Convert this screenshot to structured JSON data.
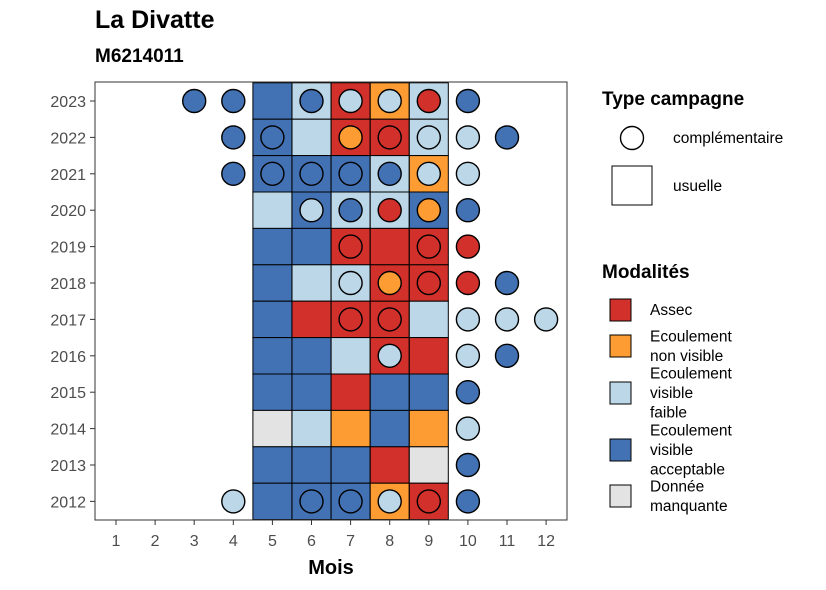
{
  "chart_data": {
    "type": "heatmap",
    "title": "La Divatte",
    "subtitle": "M6214011",
    "xlabel": "Mois",
    "ylabel": "",
    "x_categories": [
      "1",
      "2",
      "3",
      "4",
      "5",
      "6",
      "7",
      "8",
      "9",
      "10",
      "11",
      "12"
    ],
    "y_categories": [
      "2012",
      "2013",
      "2014",
      "2015",
      "2016",
      "2017",
      "2018",
      "2019",
      "2020",
      "2021",
      "2022",
      "2023"
    ],
    "colors": {
      "Assec": "#d2302a",
      "Ecoulement non visible": "#fc9c32",
      "Ecoulement visible faible": "#bcd7e8",
      "Ecoulement visible acceptable": "#4372b4",
      "Donnée manquante": "#e3e3e3"
    },
    "usuelle": [
      {
        "year": "2023",
        "months": [
          "Ecoulement visible acceptable",
          "Ecoulement visible faible",
          "Assec",
          "Ecoulement non visible",
          "Ecoulement visible faible"
        ]
      },
      {
        "year": "2022",
        "months": [
          "Ecoulement visible acceptable",
          "Ecoulement visible faible",
          "Assec",
          "Assec",
          "Ecoulement visible faible"
        ]
      },
      {
        "year": "2021",
        "months": [
          "Ecoulement visible acceptable",
          "Ecoulement visible acceptable",
          "Ecoulement visible acceptable",
          "Ecoulement visible faible",
          "Ecoulement non visible"
        ]
      },
      {
        "year": "2020",
        "months": [
          "Ecoulement visible faible",
          "Ecoulement visible acceptable",
          "Ecoulement visible faible",
          "Ecoulement visible faible",
          "Ecoulement visible acceptable"
        ]
      },
      {
        "year": "2019",
        "months": [
          "Ecoulement visible acceptable",
          "Ecoulement visible acceptable",
          "Assec",
          "Assec",
          "Assec"
        ]
      },
      {
        "year": "2018",
        "months": [
          "Ecoulement visible acceptable",
          "Ecoulement visible faible",
          "Ecoulement visible faible",
          "Assec",
          "Assec"
        ]
      },
      {
        "year": "2017",
        "months": [
          "Ecoulement visible acceptable",
          "Assec",
          "Assec",
          "Assec",
          "Ecoulement visible faible"
        ]
      },
      {
        "year": "2016",
        "months": [
          "Ecoulement visible acceptable",
          "Ecoulement visible acceptable",
          "Ecoulement visible faible",
          "Assec",
          "Assec"
        ]
      },
      {
        "year": "2015",
        "months": [
          "Ecoulement visible acceptable",
          "Ecoulement visible acceptable",
          "Assec",
          "Ecoulement visible acceptable",
          "Ecoulement visible acceptable"
        ]
      },
      {
        "year": "2014",
        "months": [
          "Donnée manquante",
          "Ecoulement visible faible",
          "Ecoulement non visible",
          "Ecoulement visible acceptable",
          "Ecoulement non visible"
        ]
      },
      {
        "year": "2013",
        "months": [
          "Ecoulement visible acceptable",
          "Ecoulement visible acceptable",
          "Ecoulement visible acceptable",
          "Assec",
          "Donnée manquante"
        ]
      },
      {
        "year": "2012",
        "months": [
          "Ecoulement visible acceptable",
          "Ecoulement visible acceptable",
          "Ecoulement visible acceptable",
          "Ecoulement non visible",
          "Assec"
        ]
      }
    ],
    "usuelle_month_range": [
      "5",
      "9"
    ],
    "complementaire": [
      {
        "year": "2023",
        "month": "3",
        "value": "Ecoulement visible acceptable"
      },
      {
        "year": "2023",
        "month": "4",
        "value": "Ecoulement visible acceptable"
      },
      {
        "year": "2023",
        "month": "6",
        "value": "Ecoulement visible acceptable"
      },
      {
        "year": "2023",
        "month": "7",
        "value": "Ecoulement visible faible"
      },
      {
        "year": "2023",
        "month": "8",
        "value": "Ecoulement visible faible"
      },
      {
        "year": "2023",
        "month": "9",
        "value": "Assec"
      },
      {
        "year": "2023",
        "month": "10",
        "value": "Ecoulement visible acceptable"
      },
      {
        "year": "2022",
        "month": "4",
        "value": "Ecoulement visible acceptable"
      },
      {
        "year": "2022",
        "month": "5",
        "value": "Ecoulement visible acceptable"
      },
      {
        "year": "2022",
        "month": "7",
        "value": "Ecoulement non visible"
      },
      {
        "year": "2022",
        "month": "8",
        "value": "Assec"
      },
      {
        "year": "2022",
        "month": "9",
        "value": "Ecoulement visible faible"
      },
      {
        "year": "2022",
        "month": "10",
        "value": "Ecoulement visible faible"
      },
      {
        "year": "2022",
        "month": "11",
        "value": "Ecoulement visible acceptable"
      },
      {
        "year": "2021",
        "month": "4",
        "value": "Ecoulement visible acceptable"
      },
      {
        "year": "2021",
        "month": "5",
        "value": "Ecoulement visible acceptable"
      },
      {
        "year": "2021",
        "month": "6",
        "value": "Ecoulement visible acceptable"
      },
      {
        "year": "2021",
        "month": "7",
        "value": "Ecoulement visible acceptable"
      },
      {
        "year": "2021",
        "month": "8",
        "value": "Ecoulement visible acceptable"
      },
      {
        "year": "2021",
        "month": "9",
        "value": "Ecoulement visible faible"
      },
      {
        "year": "2021",
        "month": "10",
        "value": "Ecoulement visible faible"
      },
      {
        "year": "2020",
        "month": "6",
        "value": "Ecoulement visible faible"
      },
      {
        "year": "2020",
        "month": "7",
        "value": "Ecoulement visible acceptable"
      },
      {
        "year": "2020",
        "month": "8",
        "value": "Assec"
      },
      {
        "year": "2020",
        "month": "9",
        "value": "Ecoulement non visible"
      },
      {
        "year": "2020",
        "month": "10",
        "value": "Ecoulement visible acceptable"
      },
      {
        "year": "2019",
        "month": "7",
        "value": "Assec"
      },
      {
        "year": "2019",
        "month": "9",
        "value": "Assec"
      },
      {
        "year": "2019",
        "month": "10",
        "value": "Assec"
      },
      {
        "year": "2018",
        "month": "7",
        "value": "Ecoulement visible faible"
      },
      {
        "year": "2018",
        "month": "8",
        "value": "Ecoulement non visible"
      },
      {
        "year": "2018",
        "month": "9",
        "value": "Assec"
      },
      {
        "year": "2018",
        "month": "10",
        "value": "Assec"
      },
      {
        "year": "2018",
        "month": "11",
        "value": "Ecoulement visible acceptable"
      },
      {
        "year": "2017",
        "month": "7",
        "value": "Assec"
      },
      {
        "year": "2017",
        "month": "8",
        "value": "Assec"
      },
      {
        "year": "2017",
        "month": "10",
        "value": "Ecoulement visible faible"
      },
      {
        "year": "2017",
        "month": "11",
        "value": "Ecoulement visible faible"
      },
      {
        "year": "2017",
        "month": "12",
        "value": "Ecoulement visible faible"
      },
      {
        "year": "2016",
        "month": "8",
        "value": "Ecoulement visible faible"
      },
      {
        "year": "2016",
        "month": "10",
        "value": "Ecoulement visible faible"
      },
      {
        "year": "2016",
        "month": "11",
        "value": "Ecoulement visible acceptable"
      },
      {
        "year": "2015",
        "month": "10",
        "value": "Ecoulement visible acceptable"
      },
      {
        "year": "2014",
        "month": "10",
        "value": "Ecoulement visible faible"
      },
      {
        "year": "2013",
        "month": "10",
        "value": "Ecoulement visible acceptable"
      },
      {
        "year": "2012",
        "month": "4",
        "value": "Ecoulement visible faible"
      },
      {
        "year": "2012",
        "month": "6",
        "value": "Ecoulement visible acceptable"
      },
      {
        "year": "2012",
        "month": "7",
        "value": "Ecoulement visible acceptable"
      },
      {
        "year": "2012",
        "month": "8",
        "value": "Ecoulement visible faible"
      },
      {
        "year": "2012",
        "month": "9",
        "value": "Assec"
      },
      {
        "year": "2012",
        "month": "10",
        "value": "Ecoulement visible acceptable"
      }
    ],
    "legend_campagne": {
      "title": "Type campagne",
      "items": [
        {
          "label": "complémentaire",
          "shape": "circle"
        },
        {
          "label": "usuelle",
          "shape": "square"
        }
      ]
    },
    "legend_modalites": {
      "title": "Modalités",
      "items": [
        {
          "key": "Assec",
          "lines": [
            "Assec"
          ]
        },
        {
          "key": "Ecoulement non visible",
          "lines": [
            "Ecoulement",
            "non visible"
          ]
        },
        {
          "key": "Ecoulement visible faible",
          "lines": [
            "Ecoulement",
            "visible",
            "faible"
          ]
        },
        {
          "key": "Ecoulement visible acceptable",
          "lines": [
            "Ecoulement",
            "visible",
            "acceptable"
          ]
        },
        {
          "key": "Donnée manquante",
          "lines": [
            "Donnée",
            "manquante"
          ]
        }
      ]
    },
    "legend_position": "right",
    "grid": false
  }
}
